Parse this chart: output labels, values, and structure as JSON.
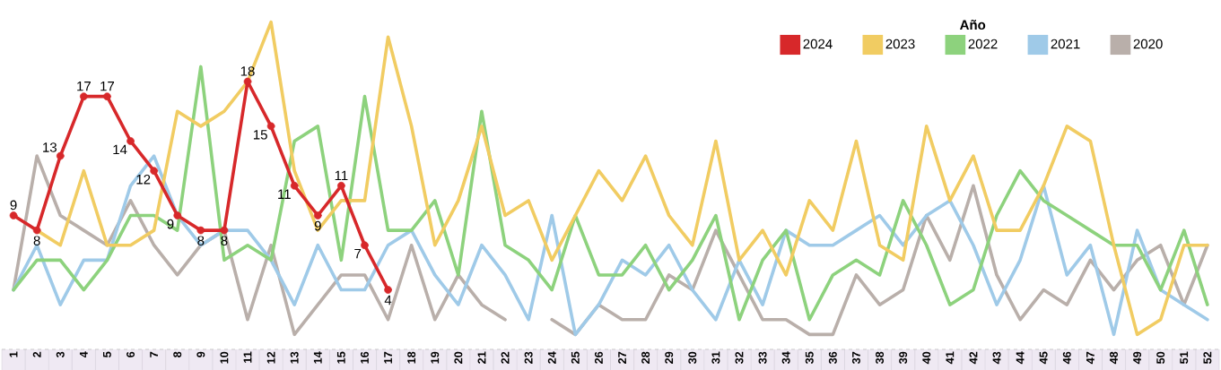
{
  "chart_data": {
    "type": "line",
    "legend_title": "Año",
    "legend": "top right",
    "tick_labels": "x",
    "categories": [
      "1",
      "2",
      "3",
      "4",
      "5",
      "6",
      "7",
      "8",
      "9",
      "10",
      "11",
      "12",
      "13",
      "14",
      "15",
      "16",
      "17",
      "18",
      "19",
      "20",
      "21",
      "22",
      "23",
      "24",
      "25",
      "26",
      "27",
      "28",
      "29",
      "30",
      "31",
      "32",
      "33",
      "34",
      "35",
      "36",
      "37",
      "38",
      "39",
      "40",
      "41",
      "42",
      "43",
      "44",
      "45",
      "46",
      "47",
      "48",
      "49",
      "50",
      "51",
      "52"
    ],
    "series": [
      {
        "name": "2024",
        "color": "#d7282a",
        "marker": "circle",
        "values": [
          9,
          8,
          13,
          17,
          17,
          14,
          12,
          9,
          8,
          8,
          18,
          15,
          11,
          9,
          11,
          7,
          4,
          null,
          null,
          null,
          null,
          null,
          null,
          null,
          null,
          null,
          null,
          null,
          null,
          null,
          null,
          null,
          null,
          null,
          null,
          null,
          null,
          null,
          null,
          null,
          null,
          null,
          null,
          null,
          null,
          null,
          null,
          null,
          null,
          null,
          null,
          null
        ],
        "value_labels": [
          "9",
          "8",
          "13",
          "17",
          "17",
          "14",
          "12",
          "9",
          "8",
          "8",
          "18",
          "15",
          "11",
          "9",
          "11",
          "7",
          "4",
          null,
          null,
          null,
          null,
          null,
          null,
          null,
          null,
          null,
          null,
          null,
          null,
          null,
          null,
          null,
          null,
          null,
          null,
          null,
          null,
          null,
          null,
          null,
          null,
          null,
          null,
          null,
          null,
          null,
          null,
          null,
          null,
          null,
          null,
          null
        ]
      },
      {
        "name": "2023",
        "color": "#f1cc62",
        "values": [
          null,
          8,
          7,
          12,
          7,
          7,
          8,
          16,
          15,
          16,
          18,
          22,
          12,
          8,
          10,
          10,
          21,
          15,
          7,
          10,
          15,
          9,
          10,
          6,
          9,
          12,
          10,
          13,
          9,
          7,
          14,
          6,
          8,
          5,
          10,
          8,
          14,
          7,
          6,
          15,
          10,
          13,
          8,
          8,
          11,
          15,
          14,
          7,
          1,
          2,
          7,
          7
        ]
      },
      {
        "name": "2022",
        "color": "#8dd27d",
        "values": [
          4,
          6,
          6,
          4,
          6,
          9,
          9,
          8,
          19,
          6,
          7,
          6,
          14,
          15,
          6,
          17,
          8,
          8,
          10,
          5,
          16,
          7,
          6,
          4,
          9,
          5,
          5,
          7,
          4,
          6,
          9,
          2,
          6,
          8,
          2,
          5,
          6,
          5,
          10,
          7,
          3,
          4,
          9,
          12,
          10,
          9,
          8,
          7,
          7,
          4,
          8,
          3
        ]
      },
      {
        "name": "2021",
        "color": "#9fcae8",
        "values": [
          4,
          7,
          3,
          6,
          6,
          11,
          13,
          9,
          7,
          8,
          8,
          6,
          3,
          7,
          4,
          4,
          7,
          8,
          5,
          3,
          7,
          5,
          2,
          9,
          1,
          3,
          6,
          5,
          7,
          4,
          2,
          6,
          3,
          8,
          7,
          7,
          8,
          9,
          7,
          9,
          10,
          7,
          3,
          6,
          11,
          5,
          7,
          1,
          8,
          4,
          3,
          2
        ]
      },
      {
        "name": "2020",
        "color": "#b9afaa",
        "values": [
          4,
          13,
          9,
          8,
          7,
          10,
          7,
          5,
          7,
          8,
          2,
          7,
          1,
          3,
          5,
          5,
          2,
          7,
          2,
          5,
          3,
          2,
          null,
          2,
          1,
          3,
          2,
          2,
          5,
          4,
          8,
          5,
          2,
          2,
          1,
          1,
          5,
          3,
          4,
          9,
          6,
          11,
          5,
          2,
          4,
          3,
          6,
          4,
          6,
          7,
          3,
          7
        ]
      }
    ]
  }
}
